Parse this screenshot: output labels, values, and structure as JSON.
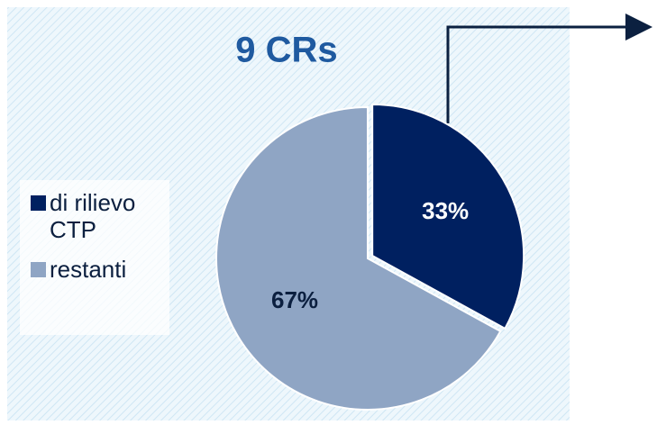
{
  "chart_data": {
    "type": "pie",
    "title": "9 CRs",
    "categories": [
      "di rilievo CTP",
      "restanti"
    ],
    "values": [
      33,
      67
    ],
    "value_labels": [
      "33%",
      "67%"
    ],
    "colors": [
      "#002060",
      "#8fa5c4"
    ],
    "label_colors": [
      "#ffffff",
      "#0b1f3f"
    ],
    "legend": "left"
  }
}
